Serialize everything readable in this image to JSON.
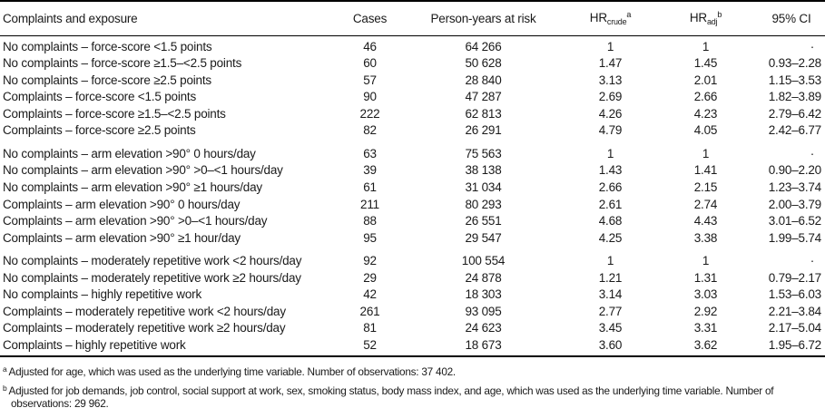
{
  "table": {
    "header": {
      "exposure": "Complaints and exposure",
      "cases": "Cases",
      "person_years": "Person-years at risk",
      "hr_crude": {
        "base": "HR",
        "sub": "crude",
        "sup": "a"
      },
      "hr_adj": {
        "base": "HR",
        "sub": "adj",
        "sup": "b"
      },
      "ci": "95% CI"
    },
    "group_starts": [
      6,
      12
    ],
    "rows": [
      {
        "label": "No complaints – force-score <1.5 points",
        "cases": "46",
        "person_years": "64 266",
        "hr_crude": "1",
        "hr_adj": "1",
        "ci": "·"
      },
      {
        "label": "No complaints – force-score ≥1.5–<2.5 points",
        "cases": "60",
        "person_years": "50 628",
        "hr_crude": "1.47",
        "hr_adj": "1.45",
        "ci": "0.93–2.28"
      },
      {
        "label": "No complaints – force-score ≥2.5 points",
        "cases": "57",
        "person_years": "28 840",
        "hr_crude": "3.13",
        "hr_adj": "2.01",
        "ci": "1.15–3.53"
      },
      {
        "label": "Complaints – force-score <1.5 points",
        "cases": "90",
        "person_years": "47 287",
        "hr_crude": "2.69",
        "hr_adj": "2.66",
        "ci": "1.82–3.89"
      },
      {
        "label": "Complaints – force-score ≥1.5–<2.5 points",
        "cases": "222",
        "person_years": "62 813",
        "hr_crude": "4.26",
        "hr_adj": "4.23",
        "ci": "2.79–6.42"
      },
      {
        "label": "Complaints – force-score ≥2.5 points",
        "cases": "82",
        "person_years": "26 291",
        "hr_crude": "4.79",
        "hr_adj": "4.05",
        "ci": "2.42–6.77"
      },
      {
        "label": "No complaints – arm elevation >90° 0 hours/day",
        "cases": "63",
        "person_years": "75 563",
        "hr_crude": "1",
        "hr_adj": "1",
        "ci": "·"
      },
      {
        "label": "No complaints – arm elevation >90° >0–<1 hours/day",
        "cases": "39",
        "person_years": "38 138",
        "hr_crude": "1.43",
        "hr_adj": "1.41",
        "ci": "0.90–2.20"
      },
      {
        "label": "No complaints – arm elevation >90° ≥1 hours/day",
        "cases": "61",
        "person_years": "31 034",
        "hr_crude": "2.66",
        "hr_adj": "2.15",
        "ci": "1.23–3.74"
      },
      {
        "label": "Complaints – arm elevation >90° 0 hours/day",
        "cases": "211",
        "person_years": "80 293",
        "hr_crude": "2.61",
        "hr_adj": "2.74",
        "ci": "2.00–3.79"
      },
      {
        "label": "Complaints – arm elevation >90° >0–<1 hours/day",
        "cases": "88",
        "person_years": "26 551",
        "hr_crude": "4.68",
        "hr_adj": "4.43",
        "ci": "3.01–6.52"
      },
      {
        "label": "Complaints – arm elevation >90° ≥1 hour/day",
        "cases": "95",
        "person_years": "29 547",
        "hr_crude": "4.25",
        "hr_adj": "3.38",
        "ci": "1.99–5.74"
      },
      {
        "label": "No complaints – moderately repetitive work <2 hours/day",
        "cases": "92",
        "person_years": "100 554",
        "hr_crude": "1",
        "hr_adj": "1",
        "ci": "·"
      },
      {
        "label": "No complaints – moderately repetitive work ≥2 hours/day",
        "cases": "29",
        "person_years": "24 878",
        "hr_crude": "1.21",
        "hr_adj": "1.31",
        "ci": "0.79–2.17"
      },
      {
        "label": "No complaints – highly repetitive work",
        "cases": "42",
        "person_years": "18 303",
        "hr_crude": "3.14",
        "hr_adj": "3.03",
        "ci": "1.53–6.03"
      },
      {
        "label": "Complaints – moderately repetitive work <2 hours/day",
        "cases": "261",
        "person_years": "93 095",
        "hr_crude": "2.77",
        "hr_adj": "2.92",
        "ci": "2.21–3.84"
      },
      {
        "label": "Complaints – moderately repetitive work ≥2 hours/day",
        "cases": "81",
        "person_years": "24 623",
        "hr_crude": "3.45",
        "hr_adj": "3.31",
        "ci": "2.17–5.04"
      },
      {
        "label": "Complaints – highly repetitive work",
        "cases": "52",
        "person_years": "18 673",
        "hr_crude": "3.60",
        "hr_adj": "3.62",
        "ci": "1.95–6.72"
      }
    ]
  },
  "footnotes": [
    {
      "marker": "a",
      "text": "Adjusted for age, which was used as the underlying time variable. Number of observations: 37 402."
    },
    {
      "marker": "b",
      "text": "Adjusted for job demands, job control, social support at work, sex, smoking status, body mass index, and age, which was used as the underlying time variable. Number of observations: 29 962."
    }
  ]
}
